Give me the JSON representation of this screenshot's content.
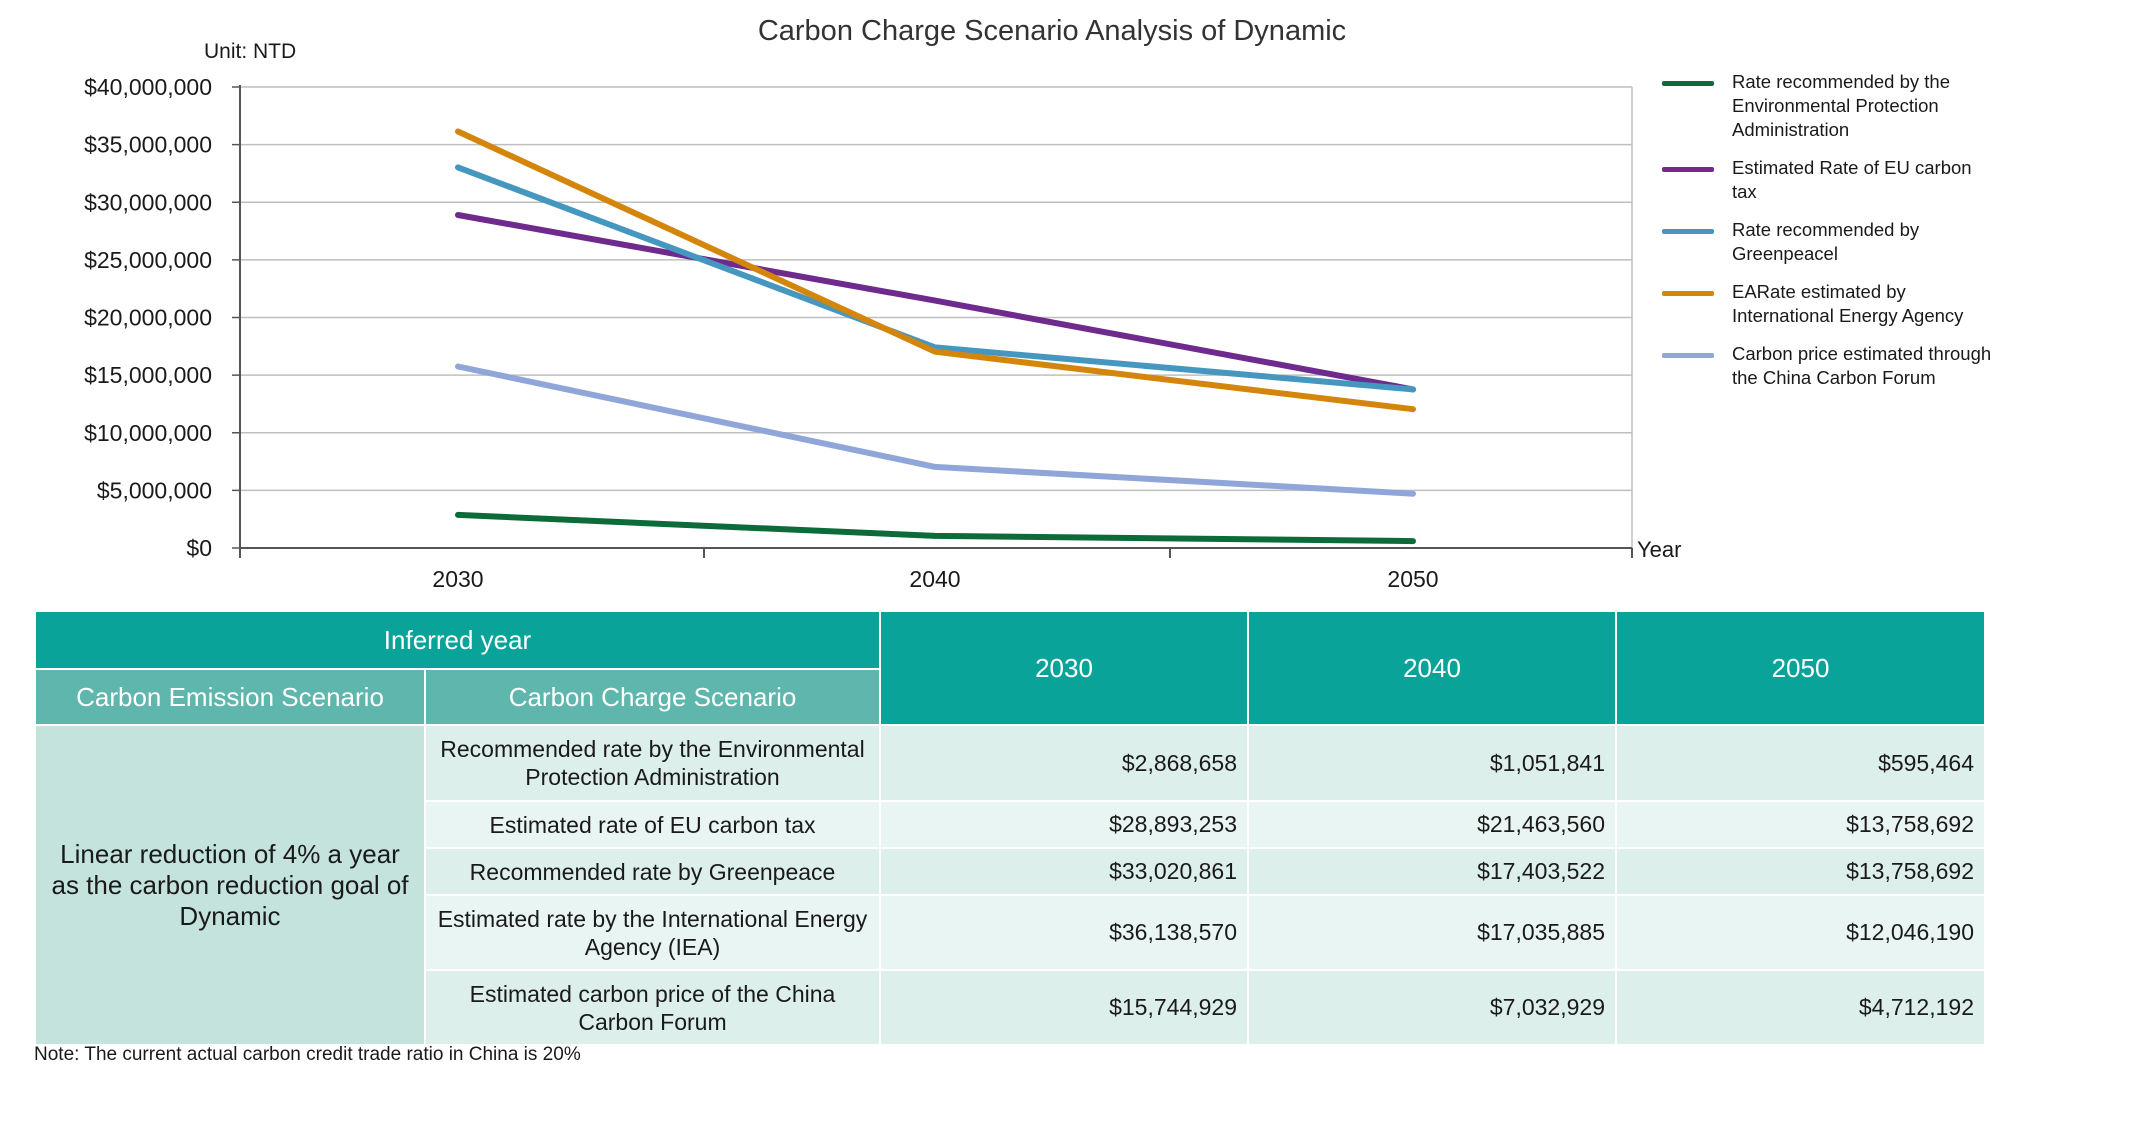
{
  "chart_data": {
    "type": "line",
    "title": "Carbon Charge Scenario Analysis of Dynamic",
    "unit_label": "Unit: NTD",
    "xlabel": "Year",
    "ylabel": "",
    "x": [
      "2030",
      "2040",
      "2050"
    ],
    "ylim": [
      0,
      40000000
    ],
    "y_ticks": [
      "$0",
      "$5,000,000",
      "$10,000,000",
      "$15,000,000",
      "$20,000,000",
      "$25,000,000",
      "$30,000,000",
      "$35,000,000",
      "$40,000,000"
    ],
    "grid": true,
    "legend_position": "right",
    "series": [
      {
        "name": "Rate recommended by the Environmental Protection Administration",
        "color": "#0d6b3a",
        "values": [
          2868658,
          1051841,
          595464
        ]
      },
      {
        "name": "Estimated Rate of EU carbon tax",
        "color": "#6f2a8e",
        "values": [
          28893253,
          21463560,
          13758692
        ]
      },
      {
        "name": "Rate recommended by Greenpeacel",
        "color": "#4597c0",
        "values": [
          33020861,
          17403522,
          13758692
        ]
      },
      {
        "name": "EARate estimated by International Energy Agency",
        "color": "#d4860c",
        "values": [
          36138570,
          17035885,
          12046190
        ]
      },
      {
        "name": "Carbon price estimated through the China Carbon Forum",
        "color": "#90a6d9",
        "values": [
          15744929,
          7032929,
          4712192
        ]
      }
    ]
  },
  "table": {
    "inferred_year_header": "Inferred year",
    "emission_header": "Carbon Emission Scenario",
    "charge_header": "Carbon Charge Scenario",
    "years": [
      "2030",
      "2040",
      "2050"
    ],
    "emission_scenario": "Linear reduction of 4% a year as the carbon reduction goal of Dynamic",
    "rows": [
      {
        "label": "Recommended rate by the Environmental Protection Administration",
        "values": [
          "$2,868,658",
          "$1,051,841",
          "$595,464"
        ]
      },
      {
        "label": "Estimated rate of EU carbon tax",
        "values": [
          "$28,893,253",
          "$21,463,560",
          "$13,758,692"
        ]
      },
      {
        "label": "Recommended rate by Greenpeace",
        "values": [
          "$33,020,861",
          "$17,403,522",
          "$13,758,692"
        ]
      },
      {
        "label": "Estimated rate by the International Energy Agency (IEA)",
        "values": [
          "$36,138,570",
          "$17,035,885",
          "$12,046,190"
        ]
      },
      {
        "label": "Estimated carbon price of the China Carbon Forum",
        "values": [
          "$15,744,929",
          "$7,032,929",
          "$4,712,192"
        ]
      }
    ]
  },
  "note": "Note: The current actual carbon credit trade ratio in China is 20%"
}
